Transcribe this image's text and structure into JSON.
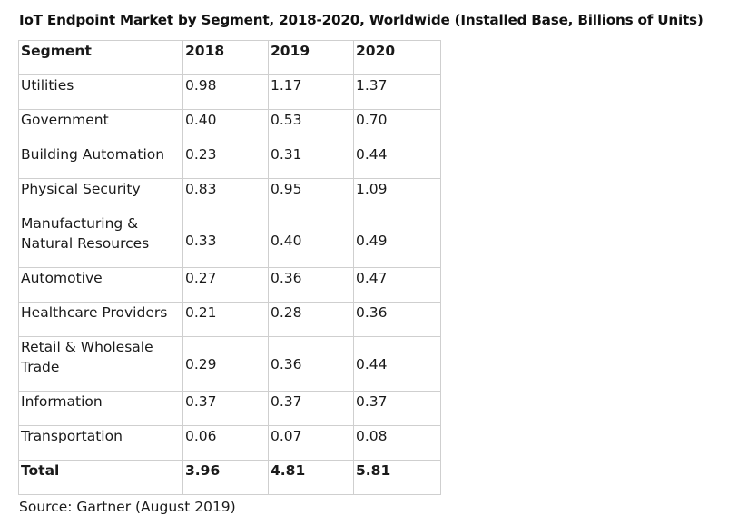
{
  "title": "IoT Endpoint Market by Segment, 2018-2020, Worldwide (Installed Base, Billions of Units)",
  "table": {
    "headers": [
      "Segment",
      "2018",
      "2019",
      "2020"
    ],
    "rows": [
      {
        "segment": "Utilities",
        "y2018": "0.98",
        "y2019": "1.17",
        "y2020": "1.37"
      },
      {
        "segment": "Government",
        "y2018": "0.40",
        "y2019": "0.53",
        "y2020": "0.70"
      },
      {
        "segment": "Building Automation",
        "y2018": "0.23",
        "y2019": "0.31",
        "y2020": "0.44"
      },
      {
        "segment": "Physical Security",
        "y2018": "0.83",
        "y2019": "0.95",
        "y2020": "1.09"
      },
      {
        "segment_line1": "Manufacturing &",
        "segment_line2": "Natural Resources",
        "y2018": "0.33",
        "y2019": "0.40",
        "y2020": "0.49"
      },
      {
        "segment": "Automotive",
        "y2018": "0.27",
        "y2019": "0.36",
        "y2020": "0.47"
      },
      {
        "segment": "Healthcare Providers",
        "y2018": "0.21",
        "y2019": "0.28",
        "y2020": "0.36"
      },
      {
        "segment_line1": "Retail & Wholesale",
        "segment_line2": "Trade",
        "y2018": "0.29",
        "y2019": "0.36",
        "y2020": "0.44"
      },
      {
        "segment": "Information",
        "y2018": "0.37",
        "y2019": "0.37",
        "y2020": "0.37"
      },
      {
        "segment": "Transportation",
        "y2018": "0.06",
        "y2019": "0.07",
        "y2020": "0.08"
      }
    ],
    "total": {
      "label": "Total",
      "y2018": "3.96",
      "y2019": "4.81",
      "y2020": "5.81"
    }
  },
  "source": "Source: Gartner (August 2019)"
}
